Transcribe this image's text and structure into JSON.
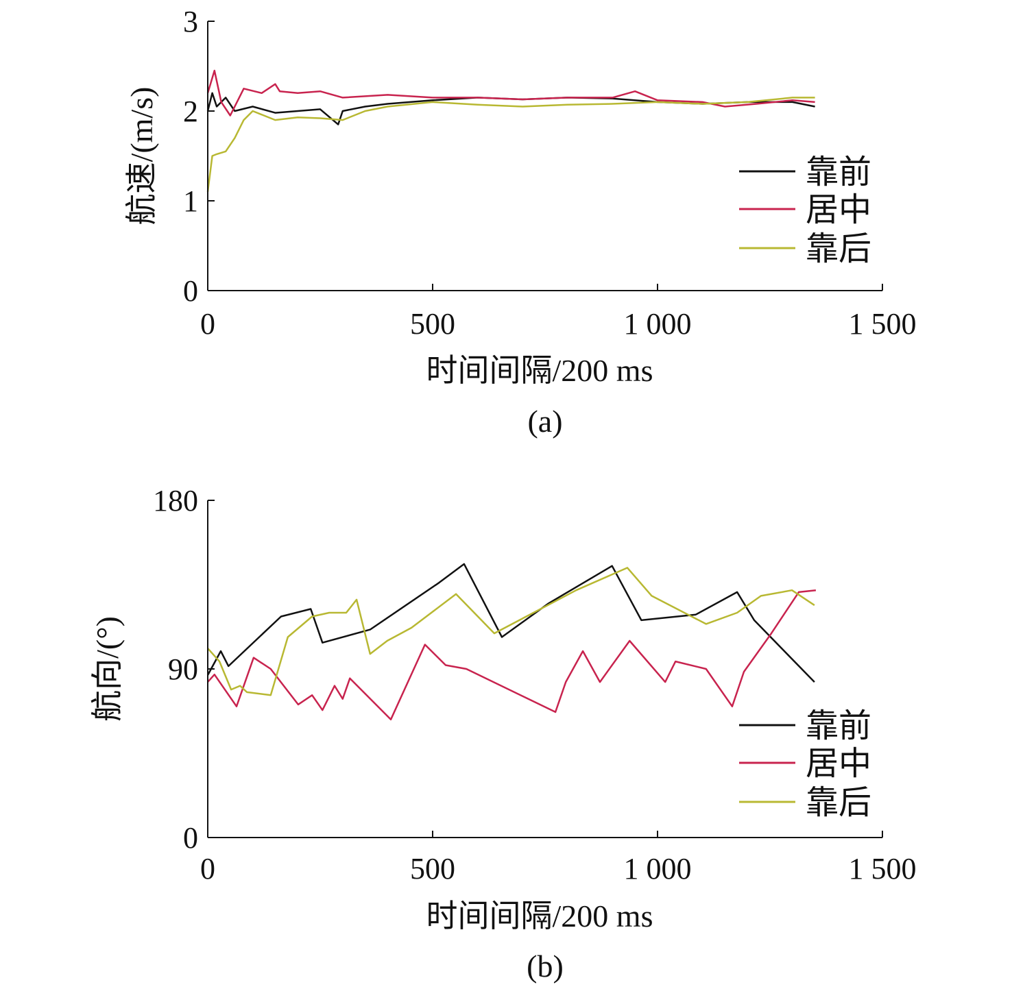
{
  "colors": {
    "front": "#111111",
    "middle": "#c8234e",
    "back": "#b8b832"
  },
  "chart_data": [
    {
      "type": "line",
      "panel_label": "(a)",
      "xlabel": "时间间隔/200 ms",
      "ylabel": "航速/(m/s)",
      "xlim": [
        0,
        1500
      ],
      "ylim": [
        0,
        3
      ],
      "xticks": [
        0,
        500,
        1000,
        1500
      ],
      "xtick_labels": [
        "0",
        "500",
        "1 000",
        "1 500"
      ],
      "yticks": [
        0,
        1,
        2,
        3
      ],
      "ytick_labels": [
        "0",
        "1",
        "2",
        "3"
      ],
      "grid": false,
      "legend_position": "right",
      "series": [
        {
          "name": "靠前",
          "color_key": "front",
          "x": [
            0,
            10,
            20,
            40,
            60,
            100,
            150,
            200,
            250,
            290,
            300,
            350,
            400,
            500,
            600,
            700,
            800,
            900,
            1000,
            1100,
            1200,
            1300,
            1350
          ],
          "y": [
            2.0,
            2.2,
            2.05,
            2.15,
            2.0,
            2.05,
            1.98,
            2.0,
            2.02,
            1.85,
            2.0,
            2.05,
            2.08,
            2.12,
            2.15,
            2.13,
            2.15,
            2.14,
            2.1,
            2.08,
            2.1,
            2.1,
            2.05
          ]
        },
        {
          "name": "居中",
          "color_key": "middle",
          "x": [
            0,
            15,
            30,
            50,
            80,
            120,
            150,
            160,
            200,
            250,
            300,
            400,
            500,
            600,
            700,
            800,
            900,
            950,
            1000,
            1100,
            1150,
            1220,
            1300,
            1350
          ],
          "y": [
            2.2,
            2.45,
            2.1,
            1.95,
            2.25,
            2.2,
            2.3,
            2.22,
            2.2,
            2.22,
            2.15,
            2.18,
            2.15,
            2.15,
            2.13,
            2.15,
            2.15,
            2.22,
            2.12,
            2.1,
            2.05,
            2.08,
            2.12,
            2.1
          ]
        },
        {
          "name": "靠后",
          "color_key": "back",
          "x": [
            0,
            10,
            20,
            40,
            60,
            80,
            100,
            150,
            200,
            250,
            300,
            350,
            400,
            500,
            600,
            700,
            800,
            900,
            1000,
            1100,
            1200,
            1300,
            1350
          ],
          "y": [
            1.1,
            1.5,
            1.52,
            1.55,
            1.7,
            1.9,
            2.0,
            1.9,
            1.93,
            1.92,
            1.9,
            2.0,
            2.05,
            2.1,
            2.07,
            2.05,
            2.07,
            2.08,
            2.1,
            2.08,
            2.1,
            2.15,
            2.15
          ]
        }
      ]
    },
    {
      "type": "line",
      "panel_label": "(b)",
      "xlabel": "时间间隔/200 ms",
      "ylabel": "航向/(°)",
      "xlim": [
        0,
        1500
      ],
      "ylim": [
        0,
        180
      ],
      "xticks": [
        0,
        500,
        1000,
        1500
      ],
      "xtick_labels": [
        "0",
        "500",
        "1 000",
        "1 500"
      ],
      "yticks": [
        0,
        90,
        180
      ],
      "ytick_labels": [
        "0",
        "90",
        "180"
      ],
      "grid": false,
      "legend_position": "bottom-right",
      "series": [
        {
          "name": "靠前",
          "color_key": "front",
          "x": [
            0,
            29,
            46,
            163,
            229,
            255,
            361,
            514,
            570,
            654,
            758,
            899,
            964,
            1085,
            1177,
            1215,
            1349
          ],
          "y": [
            86.7,
            99.5,
            91.5,
            118,
            122,
            104,
            111,
            136,
            146,
            107,
            125,
            145,
            116,
            119,
            131,
            116,
            83
          ]
        },
        {
          "name": "居中",
          "color_key": "middle",
          "x": [
            0,
            15,
            64,
            102,
            140,
            201,
            232,
            255,
            282,
            300,
            316,
            407,
            483,
            529,
            575,
            773,
            796,
            834,
            872,
            938,
            1017,
            1040,
            1108,
            1166,
            1192,
            1253,
            1314,
            1352
          ],
          "y": [
            83,
            87,
            70,
            96,
            90,
            71,
            76,
            68,
            81,
            74,
            85,
            63,
            103,
            92,
            90,
            67,
            83,
            99.5,
            83,
            105,
            83,
            94,
            90,
            70,
            88.5,
            109,
            131,
            132
          ]
        },
        {
          "name": "靠后",
          "color_key": "back",
          "x": [
            0,
            26,
            52,
            72,
            87,
            140,
            178,
            232,
            270,
            308,
            331,
            361,
            399,
            453,
            552,
            637,
            819,
            933,
            987,
            1108,
            1177,
            1230,
            1299,
            1349
          ],
          "y": [
            101,
            94,
            79,
            81,
            77.6,
            76,
            107,
            118,
            120,
            120,
            127,
            98,
            105,
            112,
            130,
            109,
            132,
            144,
            129,
            114,
            120,
            129,
            132,
            124
          ]
        }
      ]
    }
  ]
}
